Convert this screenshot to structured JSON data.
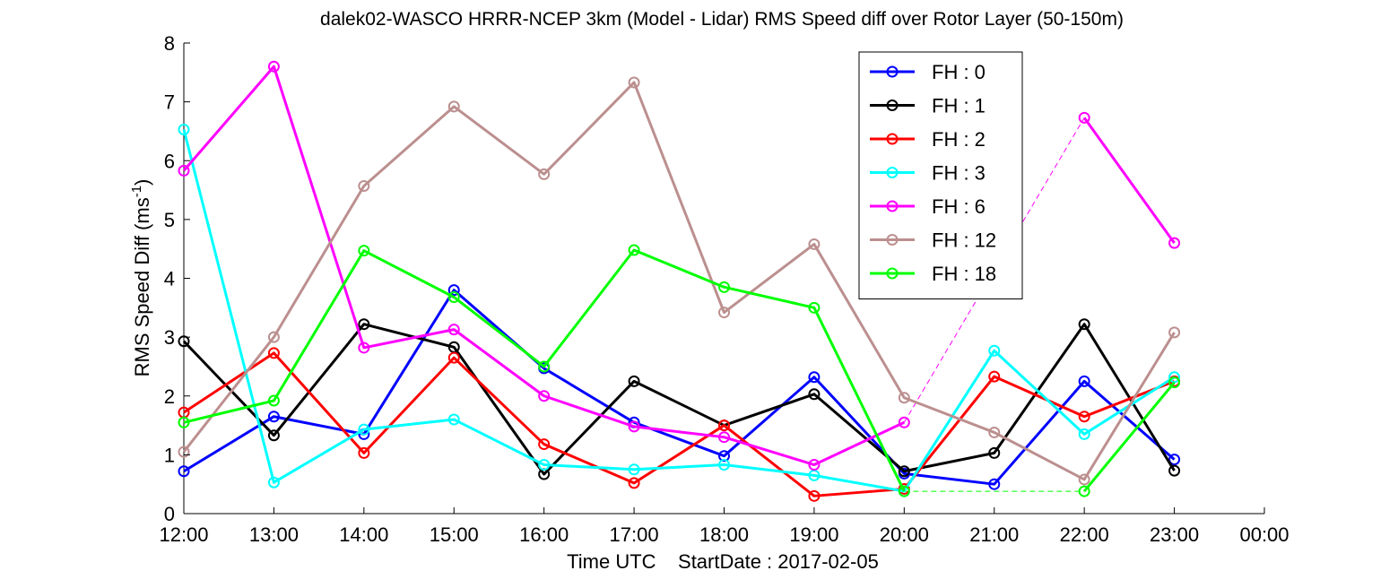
{
  "chart_data": {
    "type": "line",
    "title": "dalek02-WASCO HRRR-NCEP 3km (Model - Lidar) RMS Speed diff over Rotor Layer (50-150m)",
    "xlabel": "Time UTC    StartDate : 2017-02-05",
    "ylabel_main": "RMS Speed Diff (ms",
    "ylabel_sup": "-1",
    "ylabel_end": ")",
    "x_ticks": [
      "12:00",
      "13:00",
      "14:00",
      "15:00",
      "16:00",
      "17:00",
      "18:00",
      "19:00",
      "20:00",
      "21:00",
      "22:00",
      "23:00",
      "00:00"
    ],
    "y_ticks": [
      "0",
      "1",
      "2",
      "3",
      "4",
      "5",
      "6",
      "7",
      "8"
    ],
    "xlim": [
      0,
      12
    ],
    "ylim": [
      0,
      8
    ],
    "grid": false,
    "legend_position": "top-right",
    "series": [
      {
        "name": "FH : 0",
        "color": "#0000ff",
        "values": [
          0.72,
          1.65,
          1.35,
          3.8,
          2.47,
          1.55,
          0.98,
          2.32,
          0.68,
          0.5,
          2.25,
          0.92
        ]
      },
      {
        "name": "FH : 1",
        "color": "#000000",
        "values": [
          2.93,
          1.33,
          3.22,
          2.83,
          0.67,
          2.25,
          1.5,
          2.03,
          0.72,
          1.03,
          3.22,
          0.73
        ]
      },
      {
        "name": "FH : 2",
        "color": "#ff0000",
        "values": [
          1.72,
          2.73,
          1.03,
          2.65,
          1.18,
          0.52,
          1.5,
          0.3,
          0.42,
          2.33,
          1.65,
          2.25
        ]
      },
      {
        "name": "FH : 3",
        "color": "#00ffff",
        "values": [
          6.53,
          0.53,
          1.43,
          1.6,
          0.83,
          0.75,
          0.83,
          0.65,
          0.38,
          2.77,
          1.35,
          2.32
        ]
      },
      {
        "name": "FH : 6",
        "color": "#ff00ff",
        "values": [
          5.83,
          7.6,
          2.82,
          3.13,
          2.0,
          1.48,
          1.3,
          0.83,
          1.55,
          null,
          6.73,
          4.6
        ]
      },
      {
        "name": "FH : 12",
        "color": "#bc8f8f",
        "values": [
          1.05,
          3.0,
          5.57,
          6.92,
          5.77,
          7.33,
          3.42,
          4.58,
          1.97,
          1.38,
          0.58,
          3.08
        ]
      },
      {
        "name": "FH : 18",
        "color": "#00ff00",
        "values": [
          1.55,
          1.92,
          4.47,
          3.68,
          2.5,
          4.48,
          3.85,
          3.5,
          0.38,
          null,
          0.38,
          2.23
        ]
      }
    ]
  }
}
